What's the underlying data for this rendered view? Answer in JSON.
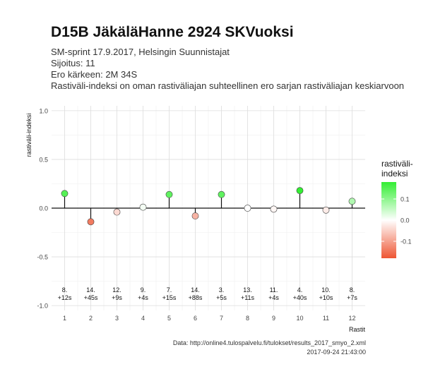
{
  "header": {
    "title": "D15B JäkäläHanne 2924 SKVuoksi",
    "subtitle_lines": [
      "SM-sprint 17.9.2017, Helsingin Suunnistajat",
      "Sijoitus: 11",
      "Ero kärkeen: 2M 34S",
      "Rastiväli-indeksi on oman rastiväliajan suhteellinen ero sarjan rastiväliajan keskiarvoon"
    ]
  },
  "caption": {
    "source": "Data: http://online4.tulospalvelu.fi/tulokset/results_2017_smyo_2.xml",
    "timestamp": "2017-09-24 21:43:00"
  },
  "chart_data": {
    "type": "scatter",
    "xlabel": "Rastit",
    "ylabel": "rastiväli-indeksi",
    "ylim": [
      -1.05,
      1.05
    ],
    "yticks": [
      -1.0,
      -0.5,
      0.0,
      0.5,
      1.0
    ],
    "ytick_labels": [
      "-1.0",
      "-0.5",
      "0.0",
      "0.5",
      "1.0"
    ],
    "x": [
      1,
      2,
      3,
      4,
      5,
      6,
      7,
      8,
      9,
      10,
      11,
      12
    ],
    "x_tick_labels": [
      "1",
      "2",
      "3",
      "4",
      "5",
      "6",
      "7",
      "8",
      "9",
      "10",
      "11",
      "12"
    ],
    "values": [
      0.15,
      -0.14,
      -0.04,
      0.01,
      0.14,
      -0.08,
      0.14,
      0.0,
      -0.01,
      0.18,
      -0.02,
      0.07
    ],
    "rank_labels": [
      "8.",
      "14.",
      "12.",
      "9.",
      "7.",
      "14.",
      "3.",
      "13.",
      "11.",
      "4.",
      "10.",
      "8."
    ],
    "diff_labels": [
      "+12s",
      "+45s",
      "+9s",
      "+4s",
      "+15s",
      "+88s",
      "+5s",
      "+11s",
      "+4s",
      "+40s",
      "+10s",
      "+7s"
    ],
    "grid": true,
    "legend": {
      "title": "rastiväli-\nindeksi",
      "position": "right",
      "ticks": [
        0.1,
        0.0,
        -0.1
      ],
      "tick_labels": [
        "0.1",
        "0.0",
        "-0.1"
      ],
      "colors": {
        "high": "#33ee33",
        "mid": "#ffffff",
        "low": "#ee5533"
      }
    }
  }
}
